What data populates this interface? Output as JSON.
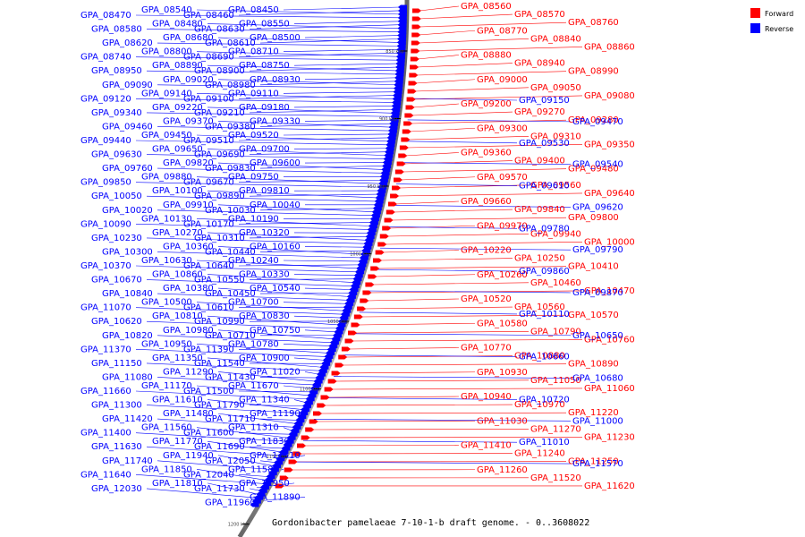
{
  "caption": "Gordonibacter pamelaeae 7-10-1-b draft genome. - 0..3608022",
  "legend": [
    {
      "label": "Forward",
      "color": "#ff0000"
    },
    {
      "label": "Reverse",
      "color": "#0000ff"
    }
  ],
  "scale_ticks": [
    "850 kbp",
    "900 kbp",
    "950 kbp",
    "1000 kbp",
    "1050 kbp",
    "1100 kbp",
    "1150 kbp",
    "1200 kbp"
  ],
  "reverse_genes": [
    "GPA_08450",
    "GPA_08460",
    "GPA_08540",
    "GPA_08470",
    "GPA_08550",
    "GPA_08630",
    "GPA_08480",
    "GPA_08580",
    "GPA_08500",
    "GPA_08610",
    "GPA_08680",
    "GPA_08620",
    "GPA_08710",
    "GPA_08690",
    "GPA_08800",
    "GPA_08740",
    "GPA_08750",
    "GPA_08900",
    "GPA_08890",
    "GPA_08950",
    "GPA_08930",
    "GPA_08980",
    "GPA_09020",
    "GPA_09090",
    "GPA_09110",
    "GPA_09100",
    "GPA_09140",
    "GPA_09120",
    "GPA_09180",
    "GPA_09210",
    "GPA_09220",
    "GPA_09340",
    "GPA_09330",
    "GPA_09380",
    "GPA_09370",
    "GPA_09460",
    "GPA_09520",
    "GPA_09510",
    "GPA_09450",
    "GPA_09440",
    "GPA_09700",
    "GPA_09690",
    "GPA_09650",
    "GPA_09630",
    "GPA_09600",
    "GPA_09830",
    "GPA_09820",
    "GPA_09760",
    "GPA_09750",
    "GPA_09670",
    "GPA_09880",
    "GPA_09850",
    "GPA_09810",
    "GPA_09890",
    "GPA_10100",
    "GPA_10050",
    "GPA_10040",
    "GPA_10030",
    "GPA_09910",
    "GPA_10020",
    "GPA_10190",
    "GPA_10170",
    "GPA_10130",
    "GPA_10090",
    "GPA_10320",
    "GPA_10310",
    "GPA_10270",
    "GPA_10230",
    "GPA_10160",
    "GPA_10440",
    "GPA_10360",
    "GPA_10300",
    "GPA_10240",
    "GPA_10640",
    "GPA_10630",
    "GPA_10370",
    "GPA_10330",
    "GPA_10550",
    "GPA_10860",
    "GPA_10670",
    "GPA_10540",
    "GPA_10450",
    "GPA_10380",
    "GPA_10840",
    "GPA_10700",
    "GPA_10610",
    "GPA_10500",
    "GPA_11070",
    "GPA_10830",
    "GPA_10990",
    "GPA_10810",
    "GPA_10620",
    "GPA_10750",
    "GPA_10710",
    "GPA_10980",
    "GPA_10820",
    "GPA_10780",
    "GPA_11390",
    "GPA_10950",
    "GPA_11370",
    "GPA_10900",
    "GPA_11540",
    "GPA_11350",
    "GPA_11150",
    "GPA_11020",
    "GPA_11430",
    "GPA_11290",
    "GPA_11080",
    "GPA_11670",
    "GPA_11500",
    "GPA_11170",
    "GPA_11660",
    "GPA_11340",
    "GPA_11790",
    "GPA_11610",
    "GPA_11300",
    "GPA_11190",
    "GPA_11710",
    "GPA_11480",
    "GPA_11420",
    "GPA_11310",
    "GPA_11600",
    "GPA_11560",
    "GPA_11400",
    "GPA_11830",
    "GPA_11690",
    "GPA_11770",
    "GPA_11630",
    "GPA_11510",
    "GPA_12050",
    "GPA_11940",
    "GPA_11740",
    "GPA_11580",
    "GPA_12040",
    "GPA_11850",
    "GPA_11640",
    "GPA_11950",
    "GPA_11730",
    "GPA_11810",
    "GPA_12030",
    "GPA_11890",
    "GPA_11960"
  ],
  "forward_genes": [
    "GPA_08560",
    "GPA_08570",
    "GPA_08760",
    "GPA_08770",
    "GPA_08840",
    "GPA_08860",
    "GPA_08880",
    "GPA_08940",
    "GPA_08990",
    "GPA_09000",
    "GPA_09050",
    "GPA_09080",
    "GPA_09200",
    "GPA_09270",
    "GPA_09280",
    "GPA_09300",
    "GPA_09310",
    "GPA_09350",
    "GPA_09360",
    "GPA_09400",
    "GPA_09480",
    "GPA_09570",
    "GPA_09560",
    "GPA_09640",
    "GPA_09660",
    "GPA_09840",
    "GPA_09800",
    "GPA_09970",
    "GPA_09940",
    "GPA_10000",
    "GPA_10220",
    "GPA_10250",
    "GPA_10410",
    "GPA_10260",
    "GPA_10460",
    "GPA_10470",
    "GPA_10520",
    "GPA_10560",
    "GPA_10570",
    "GPA_10580",
    "GPA_10790",
    "GPA_10760",
    "GPA_10770",
    "GPA_10880",
    "GPA_10890",
    "GPA_10930",
    "GPA_11050",
    "GPA_11060",
    "GPA_10940",
    "GPA_10970",
    "GPA_11220",
    "GPA_11030",
    "GPA_11270",
    "GPA_11230",
    "GPA_11410",
    "GPA_11240",
    "GPA_11250",
    "GPA_11260",
    "GPA_11520",
    "GPA_11620"
  ],
  "reverse_right_genes": [
    "GPA_09150",
    "GPA_09470",
    "GPA_09530",
    "GPA_09540",
    "GPA_09610",
    "GPA_09620",
    "GPA_09780",
    "GPA_09790",
    "GPA_09860",
    "GPA_09870",
    "GPA_10110",
    "GPA_10650",
    "GPA_10660",
    "GPA_10680",
    "GPA_10720",
    "GPA_11000",
    "GPA_11010",
    "GPA_11570"
  ]
}
